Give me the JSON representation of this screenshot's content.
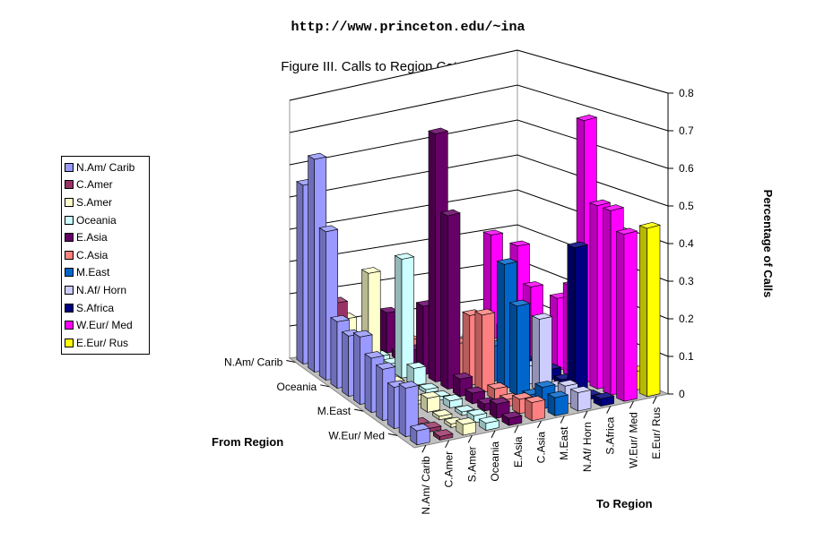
{
  "header": {
    "url": "http://www.princeton.edu/~ina"
  },
  "chart_data": {
    "type": "bar3d",
    "title": "Figure III. Calls to Region Categories 1995",
    "xlabel": "To Region",
    "ylabel": "From Region",
    "zlabel": "Percentage of Calls",
    "zlim": [
      0,
      0.8
    ],
    "zticks": [
      "0",
      "0.1",
      "0.2",
      "0.3",
      "0.4",
      "0.5",
      "0.6",
      "0.7",
      "0.8"
    ],
    "grid": true,
    "legend_position": "left",
    "to_regions": [
      "N.Am/ Carib",
      "C.Amer",
      "S.Amer",
      "Oceania",
      "E.Asia",
      "C.Asia",
      "M.East",
      "N.Af/ Horn",
      "S.Africa",
      "W.Eur/ Med",
      "E.Eur/ Rus"
    ],
    "from_regions": [
      "N.Am/ Carib",
      "C.Amer",
      "S.Amer",
      "Oceania",
      "E.Asia",
      "C.Asia",
      "M.East",
      "N.Af/ Horn",
      "S.Africa",
      "W.Eur/ Med",
      "E.Eur/ Rus"
    ],
    "from_tick_labels": [
      "N.Am/ Carib",
      "Oceania",
      "M.East",
      "W.Eur/ Med"
    ],
    "colors": [
      "#9999FF",
      "#993366",
      "#FFFFCC",
      "#CCFFFF",
      "#660066",
      "#FF8080",
      "#0066CC",
      "#CCCCFF",
      "#000080",
      "#FF00FF",
      "#FFFF00"
    ],
    "values": [
      [
        0.55,
        0.15,
        0.12,
        0.05,
        0.12,
        0.03,
        0.02,
        0.01,
        0.01,
        0.3,
        0.01
      ],
      [
        0.65,
        0.2,
        0.08,
        0.02,
        0.02,
        0.01,
        0.01,
        0.0,
        0.0,
        0.05,
        0.0
      ],
      [
        0.45,
        0.02,
        0.3,
        0.02,
        0.05,
        0.05,
        0.02,
        0.01,
        0.0,
        0.3,
        0.01
      ],
      [
        0.2,
        0.02,
        0.03,
        0.35,
        0.2,
        0.02,
        0.05,
        0.01,
        0.01,
        0.2,
        0.0
      ],
      [
        0.18,
        0.01,
        0.02,
        0.05,
        0.72,
        0.1,
        0.02,
        0.01,
        0.02,
        0.1,
        0.0
      ],
      [
        0.2,
        0.01,
        0.01,
        0.01,
        0.5,
        0.2,
        0.1,
        0.02,
        0.01,
        0.2,
        0.05
      ],
      [
        0.16,
        0.01,
        0.01,
        0.01,
        0.05,
        0.22,
        0.35,
        0.05,
        0.03,
        0.25,
        0.01
      ],
      [
        0.15,
        0.01,
        0.04,
        0.02,
        0.03,
        0.03,
        0.25,
        0.2,
        0.02,
        0.72,
        0.02
      ],
      [
        0.12,
        0.0,
        0.01,
        0.01,
        0.02,
        0.02,
        0.02,
        0.03,
        0.4,
        0.5,
        0.01
      ],
      [
        0.14,
        0.01,
        0.01,
        0.02,
        0.04,
        0.04,
        0.06,
        0.05,
        0.01,
        0.5,
        0.05
      ],
      [
        0.04,
        0.01,
        0.03,
        0.02,
        0.02,
        0.05,
        0.05,
        0.05,
        0.02,
        0.45,
        0.45
      ]
    ]
  }
}
